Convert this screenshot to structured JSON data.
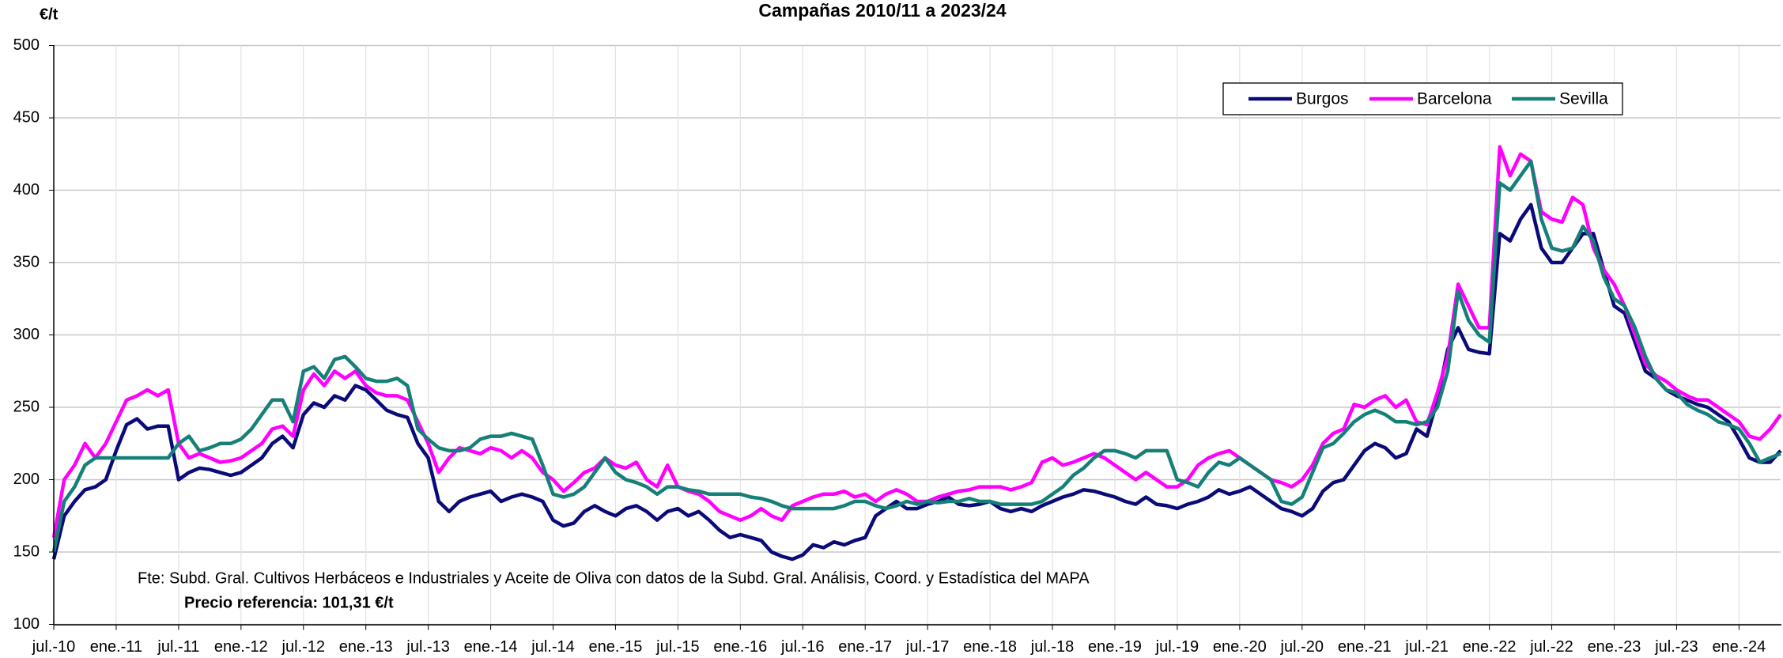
{
  "chart_data": {
    "type": "line",
    "title": "Campañas 2010/11 a 2023/24",
    "y_label": "€/t",
    "annotations": [
      "Fte: Subd. Gral. Cultivos Herbáceos e Industriales y Aceite de Oliva con datos de la Subd. Gral. Análisis, Coord. y Estadística del MAPA",
      "Precio referencia: 101,31 €/t"
    ],
    "ylim": [
      100,
      500
    ],
    "yticks": [
      100,
      150,
      200,
      250,
      300,
      350,
      400,
      450,
      500
    ],
    "grid": true,
    "legend": "top-right",
    "categories": [
      "jul.-10",
      null,
      null,
      null,
      null,
      null,
      "ene.-11",
      null,
      null,
      null,
      null,
      null,
      "jul.-11",
      null,
      null,
      null,
      null,
      null,
      "ene.-12",
      null,
      null,
      null,
      null,
      null,
      "jul.-12",
      null,
      null,
      null,
      null,
      null,
      "ene.-13",
      null,
      null,
      null,
      null,
      null,
      "jul.-13",
      null,
      null,
      null,
      null,
      null,
      "ene.-14",
      null,
      null,
      null,
      null,
      null,
      "jul.-14",
      null,
      null,
      null,
      null,
      null,
      "ene.-15",
      null,
      null,
      null,
      null,
      null,
      "jul.-15",
      null,
      null,
      null,
      null,
      null,
      "ene.-16",
      null,
      null,
      null,
      null,
      null,
      "jul.-16",
      null,
      null,
      null,
      null,
      null,
      "ene.-17",
      null,
      null,
      null,
      null,
      null,
      "jul.-17",
      null,
      null,
      null,
      null,
      null,
      "ene.-18",
      null,
      null,
      null,
      null,
      null,
      "jul.-18",
      null,
      null,
      null,
      null,
      null,
      "ene.-19",
      null,
      null,
      null,
      null,
      null,
      "jul.-19",
      null,
      null,
      null,
      null,
      null,
      "ene.-20",
      null,
      null,
      null,
      null,
      null,
      "jul.-20",
      null,
      null,
      null,
      null,
      null,
      "ene.-21",
      null,
      null,
      null,
      null,
      null,
      "jul.-21",
      null,
      null,
      null,
      null,
      null,
      "ene.-22",
      null,
      null,
      null,
      null,
      null,
      "jul.-22",
      null,
      null,
      null,
      null,
      null,
      "ene.-23",
      null,
      null,
      null,
      null,
      null,
      "jul.-23",
      null,
      null,
      null,
      null,
      null,
      "ene.-24",
      null,
      null,
      null,
      null
    ],
    "series": [
      {
        "name": "Burgos",
        "color": "#0a0a78",
        "values": [
          145,
          175,
          185,
          193,
          195,
          200,
          220,
          238,
          242,
          235,
          237,
          237,
          200,
          205,
          208,
          207,
          205,
          203,
          205,
          210,
          215,
          225,
          230,
          222,
          245,
          253,
          250,
          258,
          255,
          265,
          262,
          255,
          248,
          245,
          243,
          225,
          215,
          185,
          178,
          185,
          188,
          190,
          192,
          185,
          188,
          190,
          188,
          185,
          172,
          168,
          170,
          178,
          182,
          178,
          175,
          180,
          182,
          178,
          172,
          178,
          180,
          175,
          178,
          172,
          165,
          160,
          162,
          160,
          158,
          150,
          147,
          145,
          148,
          155,
          153,
          157,
          155,
          158,
          160,
          175,
          180,
          185,
          180,
          180,
          183,
          185,
          188,
          183,
          182,
          183,
          185,
          180,
          178,
          180,
          178,
          182,
          185,
          188,
          190,
          193,
          192,
          190,
          188,
          185,
          183,
          188,
          183,
          182,
          180,
          183,
          185,
          188,
          193,
          190,
          192,
          195,
          190,
          185,
          180,
          178,
          175,
          180,
          192,
          198,
          200,
          210,
          220,
          225,
          222,
          215,
          218,
          235,
          230,
          255,
          290,
          305,
          290,
          288,
          287,
          370,
          365,
          380,
          390,
          360,
          350,
          350,
          360,
          370,
          370,
          345,
          320,
          315,
          295,
          275,
          270,
          262,
          258,
          255,
          252,
          250,
          245,
          240,
          228,
          215,
          212,
          212,
          220
        ]
      },
      {
        "name": "Barcelona",
        "color": "#ff00ff",
        "values": [
          160,
          200,
          210,
          225,
          215,
          225,
          240,
          255,
          258,
          262,
          258,
          262,
          225,
          215,
          218,
          215,
          212,
          213,
          215,
          220,
          225,
          235,
          237,
          230,
          262,
          273,
          265,
          275,
          270,
          275,
          265,
          260,
          258,
          258,
          255,
          240,
          225,
          205,
          215,
          222,
          220,
          218,
          222,
          220,
          215,
          220,
          215,
          205,
          200,
          192,
          198,
          205,
          208,
          215,
          210,
          208,
          212,
          200,
          195,
          210,
          195,
          192,
          190,
          185,
          178,
          175,
          172,
          175,
          180,
          175,
          172,
          182,
          185,
          188,
          190,
          190,
          192,
          188,
          190,
          185,
          190,
          193,
          190,
          185,
          185,
          188,
          190,
          192,
          193,
          195,
          195,
          195,
          193,
          195,
          198,
          212,
          215,
          210,
          212,
          215,
          218,
          215,
          210,
          205,
          200,
          205,
          200,
          195,
          195,
          200,
          210,
          215,
          218,
          220,
          215,
          210,
          205,
          200,
          198,
          195,
          200,
          210,
          225,
          232,
          235,
          252,
          250,
          255,
          258,
          250,
          255,
          240,
          238,
          260,
          285,
          335,
          320,
          305,
          305,
          430,
          410,
          425,
          420,
          385,
          380,
          378,
          395,
          390,
          360,
          345,
          335,
          320,
          300,
          280,
          272,
          268,
          262,
          258,
          255,
          255,
          250,
          245,
          240,
          230,
          228,
          235,
          245
        ]
      },
      {
        "name": "Sevilla",
        "color": "#168078",
        "values": [
          150,
          185,
          195,
          210,
          215,
          215,
          215,
          215,
          215,
          215,
          215,
          215,
          225,
          230,
          220,
          222,
          225,
          225,
          228,
          235,
          245,
          255,
          255,
          240,
          275,
          278,
          270,
          283,
          285,
          278,
          270,
          268,
          268,
          270,
          265,
          235,
          228,
          222,
          220,
          220,
          222,
          228,
          230,
          230,
          232,
          230,
          228,
          210,
          190,
          188,
          190,
          195,
          205,
          215,
          205,
          200,
          198,
          195,
          190,
          195,
          195,
          193,
          192,
          190,
          190,
          190,
          190,
          188,
          187,
          185,
          182,
          180,
          180,
          180,
          180,
          180,
          182,
          185,
          185,
          182,
          180,
          182,
          185,
          183,
          185,
          184,
          185,
          185,
          187,
          185,
          185,
          183,
          183,
          183,
          183,
          185,
          190,
          195,
          203,
          208,
          215,
          220,
          220,
          218,
          215,
          220,
          220,
          220,
          200,
          198,
          195,
          205,
          212,
          210,
          215,
          210,
          205,
          200,
          185,
          183,
          188,
          205,
          222,
          225,
          232,
          240,
          245,
          248,
          245,
          240,
          240,
          238,
          240,
          250,
          275,
          330,
          310,
          300,
          295,
          405,
          400,
          410,
          420,
          380,
          360,
          358,
          360,
          375,
          365,
          340,
          325,
          320,
          305,
          285,
          270,
          262,
          260,
          252,
          248,
          245,
          240,
          238,
          235,
          225,
          212,
          215,
          218
        ]
      }
    ]
  }
}
